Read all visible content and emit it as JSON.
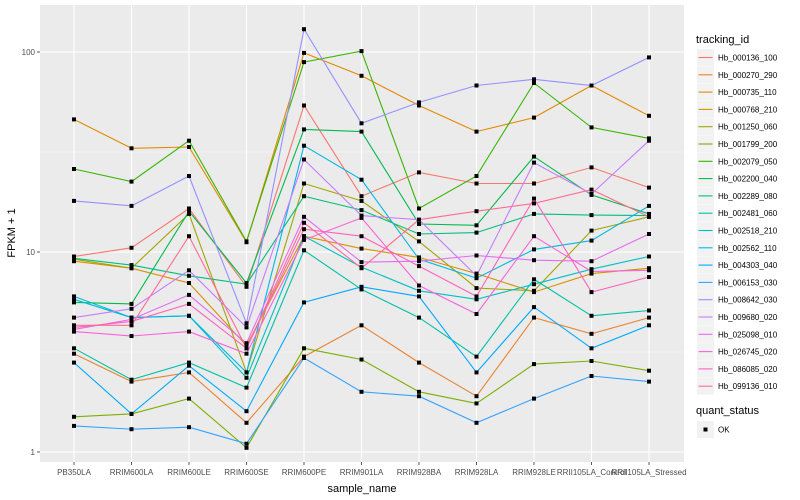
{
  "chart_data": {
    "type": "line",
    "title": "",
    "xlabel": "sample_name",
    "ylabel": "FPKM + 1",
    "yscale": "log10",
    "ylim": [
      0.95,
      170
    ],
    "yticks": [
      1,
      10,
      100
    ],
    "ytick_labels": [
      "1",
      "10",
      "100"
    ],
    "grid": true,
    "legend_position": "right",
    "categories": [
      "PB350LA",
      "RRIM600LA",
      "RRIM600LE",
      "RRIM600SE",
      "RRIM600PE",
      "RRIM901LA",
      "RRIM928BA",
      "RRIM928LA",
      "RRIM928LE",
      "RRII105LA_Control",
      "RRII105LA_Stressed"
    ],
    "legend_title": "tracking_id",
    "series": [
      {
        "name": "Hb_000136_100",
        "color": "#F8766D",
        "values": [
          9.5,
          10.5,
          16.5,
          6.7,
          54,
          19,
          25,
          22,
          22,
          26.5,
          21
        ]
      },
      {
        "name": "Hb_000270_290",
        "color": "#EA8331",
        "values": [
          3.1,
          2.25,
          2.5,
          1.4,
          3.0,
          4.3,
          2.8,
          1.9,
          4.7,
          3.9,
          4.7
        ]
      },
      {
        "name": "Hb_000735_110",
        "color": "#E38900",
        "values": [
          46,
          33,
          33.5,
          11.2,
          99,
          76,
          54,
          40,
          47,
          68,
          48
        ]
      },
      {
        "name": "Hb_000768_210",
        "color": "#D89000",
        "values": [
          9.0,
          8.3,
          7.0,
          3.4,
          12,
          10.4,
          9.4,
          7.8,
          6.3,
          7.8,
          8.3
        ]
      },
      {
        "name": "Hb_001250_060",
        "color": "#A3A500",
        "values": [
          9.2,
          8.3,
          15.5,
          2.5,
          22,
          18,
          11.3,
          6.6,
          6.4,
          12.8,
          15
        ]
      },
      {
        "name": "Hb_001799_200",
        "color": "#7CAE00",
        "values": [
          1.5,
          1.55,
          1.85,
          1.05,
          3.3,
          2.9,
          2.0,
          1.75,
          2.75,
          2.85,
          2.55
        ]
      },
      {
        "name": "Hb_002079_050",
        "color": "#39B600",
        "values": [
          26,
          22.5,
          36,
          11.3,
          89,
          101,
          16.5,
          24,
          70,
          42,
          37
        ]
      },
      {
        "name": "Hb_002200_040",
        "color": "#00BB4E",
        "values": [
          5.6,
          5.5,
          16,
          7.0,
          41,
          40,
          13.8,
          13.6,
          30,
          19.3,
          15.5
        ]
      },
      {
        "name": "Hb_002289_080",
        "color": "#00BF7D",
        "values": [
          9.3,
          8.6,
          7.6,
          6.9,
          19,
          16.2,
          12.3,
          12.5,
          15.5,
          15.3,
          15.2
        ]
      },
      {
        "name": "Hb_002481_060",
        "color": "#00C1A3",
        "values": [
          3.3,
          2.3,
          2.8,
          2.1,
          10.2,
          6.5,
          4.7,
          3.0,
          7.3,
          4.8,
          5.1
        ]
      },
      {
        "name": "Hb_002518_210",
        "color": "#00BFC4",
        "values": [
          6.0,
          4.7,
          4.8,
          2.35,
          12,
          8.4,
          6.4,
          5.8,
          6.9,
          8.2,
          9.5
        ]
      },
      {
        "name": "Hb_002562_110",
        "color": "#00B8E7",
        "values": [
          5.8,
          4.7,
          4.8,
          2.5,
          34,
          23,
          9.2,
          7.4,
          10.3,
          11.4,
          17
        ]
      },
      {
        "name": "Hb_004303_040",
        "color": "#00A9FF",
        "values": [
          2.8,
          1.55,
          2.7,
          1.6,
          5.6,
          6.7,
          6.0,
          2.5,
          5.3,
          3.3,
          4.3
        ]
      },
      {
        "name": "Hb_006153_030",
        "color": "#35A2FF",
        "values": [
          1.35,
          1.3,
          1.33,
          1.1,
          2.95,
          2.0,
          1.9,
          1.4,
          1.85,
          2.4,
          2.25
        ]
      },
      {
        "name": "Hb_008642_030",
        "color": "#9590FF",
        "values": [
          18,
          17,
          24,
          4.4,
          130,
          44,
          56,
          68,
          73,
          68,
          94
        ]
      },
      {
        "name": "Hb_009680_020",
        "color": "#C77CFF",
        "values": [
          4.7,
          5.2,
          8.1,
          4.2,
          29,
          15.2,
          14.5,
          7.6,
          28,
          19.5,
          36
        ]
      },
      {
        "name": "Hb_025098_010",
        "color": "#E76BF3",
        "values": [
          4.1,
          4.6,
          6.1,
          3.5,
          15,
          8.9,
          9.0,
          9.6,
          9.1,
          9.0,
          12.3
        ]
      },
      {
        "name": "Hb_026745_020",
        "color": "#FA62DB",
        "values": [
          4.0,
          3.8,
          4.0,
          3.1,
          11.5,
          14.8,
          6.8,
          4.9,
          12,
          8.0,
          8.1
        ]
      },
      {
        "name": "Hb_086085_020",
        "color": "#FF62BC",
        "values": [
          4.2,
          4.5,
          5.5,
          3.3,
          13,
          12,
          8.5,
          6.0,
          18.5,
          6.3,
          7.5
        ]
      },
      {
        "name": "Hb_099136_010",
        "color": "#FF6C91",
        "values": [
          4.3,
          4.3,
          12,
          3.3,
          14,
          8.3,
          14.5,
          16,
          17.5,
          20.5,
          15
        ]
      }
    ],
    "shape_legend_title": "quant_status",
    "shape_legend": [
      {
        "label": "OK",
        "shape": "square"
      }
    ]
  }
}
